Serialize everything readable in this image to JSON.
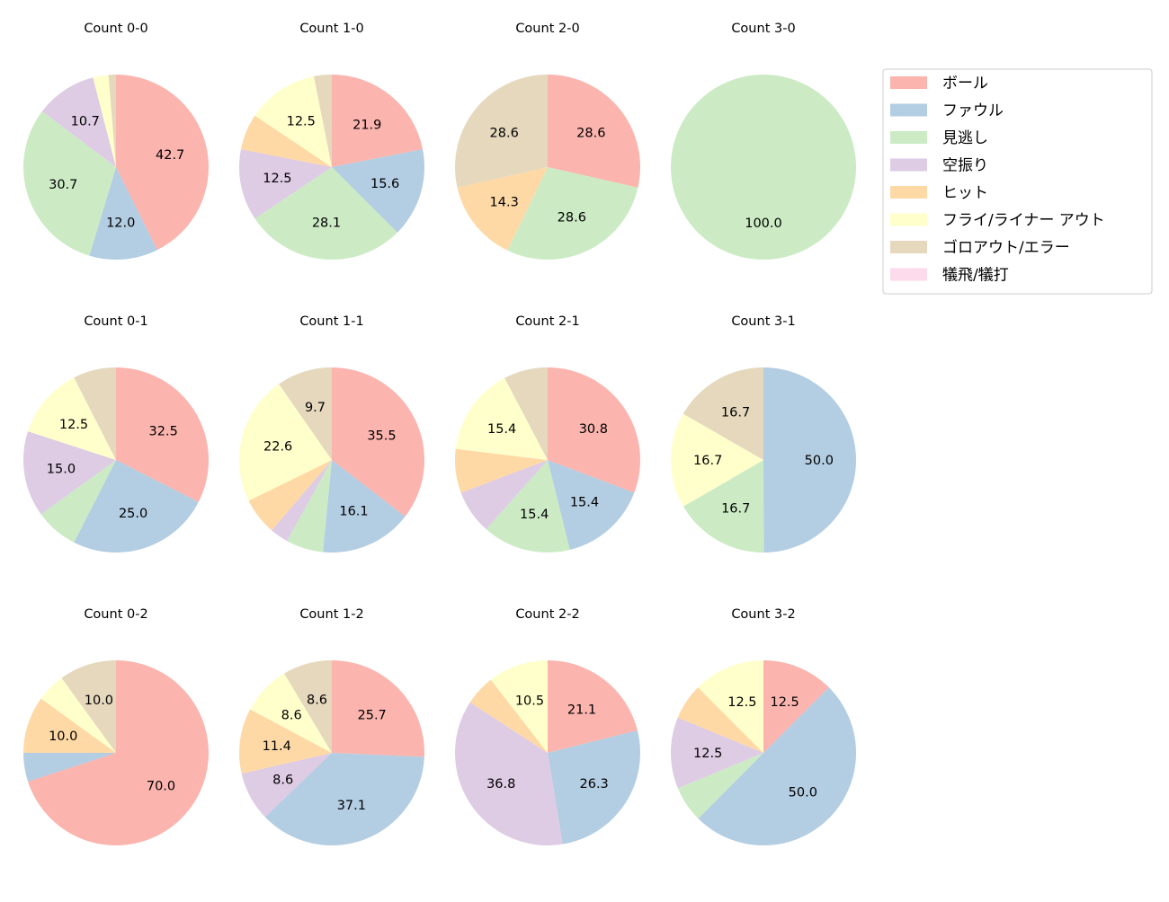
{
  "chart_data": {
    "type": "pie",
    "start_angle": 90,
    "direction": "clockwise",
    "label_format": "percent-1-decimal",
    "legend_placement": "top-right",
    "categories": [
      "ボール",
      "ファウル",
      "見逃し",
      "空振り",
      "ヒット",
      "フライ/ライナー アウト",
      "ゴロアウト/エラー",
      "犠飛/犠打"
    ],
    "colors": [
      "#fbb4ae",
      "#b3cde3",
      "#ccebc5",
      "#decbe4",
      "#fed9a6",
      "#ffffcc",
      "#e5d8bd",
      "#fddaec"
    ],
    "pies": [
      {
        "title": "Count 0-0",
        "values": [
          42.7,
          12.0,
          30.7,
          10.7,
          0,
          2.7,
          1.3,
          0
        ]
      },
      {
        "title": "Count 1-0",
        "values": [
          21.9,
          15.6,
          28.1,
          12.5,
          6.3,
          12.5,
          3.1,
          0
        ]
      },
      {
        "title": "Count 2-0",
        "values": [
          28.6,
          0,
          28.6,
          0,
          14.3,
          0,
          28.6,
          0
        ]
      },
      {
        "title": "Count 3-0",
        "values": [
          0,
          0,
          100.0,
          0,
          0,
          0,
          0,
          0
        ]
      },
      {
        "title": "Count 0-1",
        "values": [
          32.5,
          25.0,
          7.5,
          15.0,
          0,
          12.5,
          7.5,
          0
        ]
      },
      {
        "title": "Count 1-1",
        "values": [
          35.5,
          16.1,
          6.5,
          3.2,
          6.5,
          22.6,
          9.7,
          0
        ]
      },
      {
        "title": "Count 2-1",
        "values": [
          30.8,
          15.4,
          15.4,
          7.7,
          7.7,
          15.4,
          7.7,
          0
        ]
      },
      {
        "title": "Count 3-1",
        "values": [
          0,
          50.0,
          16.7,
          0,
          0,
          16.7,
          16.7,
          0
        ]
      },
      {
        "title": "Count 0-2",
        "values": [
          70.0,
          5.0,
          0,
          0,
          10.0,
          5.0,
          10.0,
          0
        ]
      },
      {
        "title": "Count 1-2",
        "values": [
          25.7,
          37.1,
          0,
          8.6,
          11.4,
          8.6,
          8.6,
          0
        ]
      },
      {
        "title": "Count 2-2",
        "values": [
          21.1,
          26.3,
          0,
          36.8,
          5.3,
          10.5,
          0,
          0
        ]
      },
      {
        "title": "Count 3-2",
        "values": [
          12.5,
          50.0,
          6.3,
          12.5,
          6.3,
          12.5,
          0,
          0
        ]
      }
    ]
  }
}
